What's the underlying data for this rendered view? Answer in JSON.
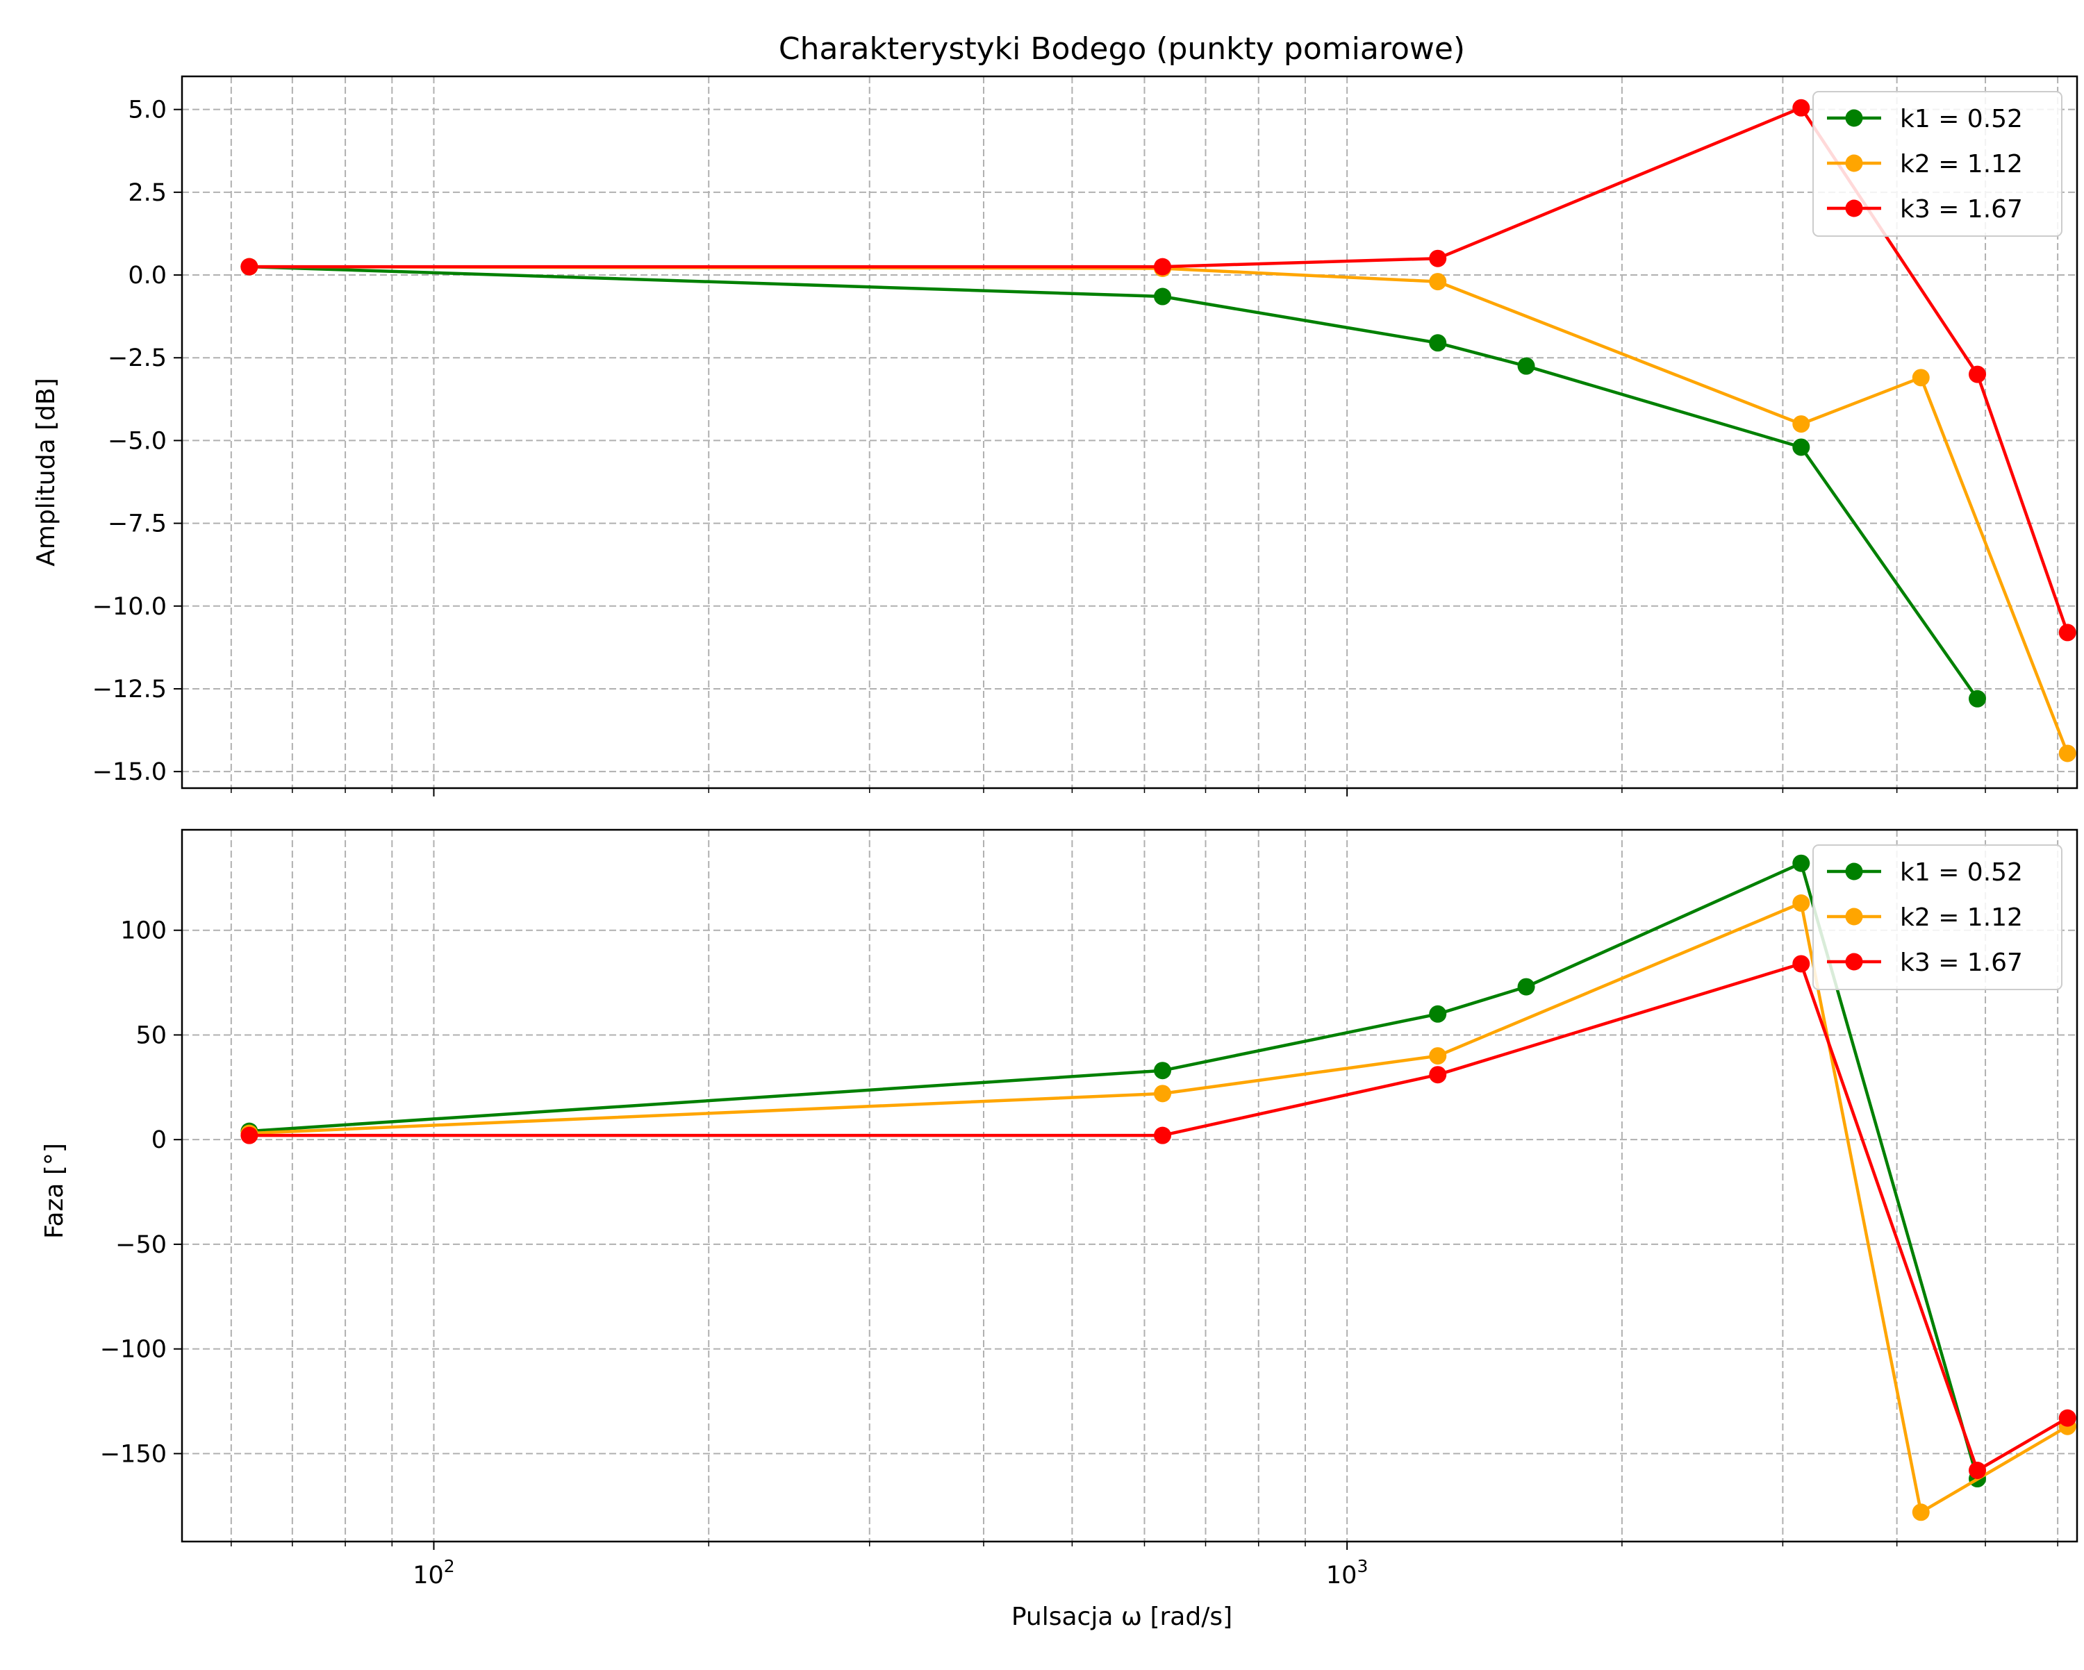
{
  "chart_data": [
    {
      "type": "line",
      "title": "Charakterystyki Bodego (punkty pomiarowe)",
      "xlabel": "",
      "ylabel": "Amplituda [dB]",
      "xscale": "log",
      "xlim": [
        53,
        6300
      ],
      "ylim": [
        -15.5,
        6.0
      ],
      "yticks": [
        "5.0",
        "2.5",
        "0.0",
        "−2.5",
        "−5.0",
        "−7.5",
        "−10.0",
        "−12.5",
        "−15.0"
      ],
      "ytick_values": [
        5.0,
        2.5,
        0.0,
        -2.5,
        -5.0,
        -7.5,
        -10.0,
        -12.5,
        -15.0
      ],
      "grid": true,
      "legend_position": "top-right",
      "series": [
        {
          "name": "k1 = 0.52",
          "color": "#008000",
          "x": [
            62.8,
            628,
            1257,
            1571,
            3142,
            4900
          ],
          "y": [
            0.25,
            -0.65,
            -2.05,
            -2.75,
            -5.2,
            -12.8
          ]
        },
        {
          "name": "k2 = 1.12",
          "color": "#ffa500",
          "x": [
            62.8,
            628,
            1257,
            3142,
            4250,
            6150
          ],
          "y": [
            0.25,
            0.2,
            -0.2,
            -4.5,
            -3.1,
            -14.45
          ]
        },
        {
          "name": "k3 = 1.67",
          "color": "#ff0000",
          "x": [
            62.8,
            628,
            1257,
            3142,
            4900,
            6150
          ],
          "y": [
            0.25,
            0.25,
            0.5,
            5.05,
            -3.0,
            -10.8
          ]
        }
      ]
    },
    {
      "type": "line",
      "title": "",
      "xlabel": "Pulsacja ω [rad/s]",
      "ylabel": "Faza [°]",
      "xscale": "log",
      "xlim": [
        53,
        6300
      ],
      "ylim": [
        -192,
        148
      ],
      "xticks": [
        {
          "base": "10",
          "exp": "2",
          "value": 100
        },
        {
          "base": "10",
          "exp": "3",
          "value": 1000
        }
      ],
      "yticks": [
        "100",
        "50",
        "0",
        "−50",
        "−100",
        "−150"
      ],
      "ytick_values": [
        100,
        50,
        0,
        -50,
        -100,
        -150
      ],
      "grid": true,
      "legend_position": "top-right",
      "series": [
        {
          "name": "k1 = 0.52",
          "color": "#008000",
          "x": [
            62.8,
            628,
            1257,
            1571,
            3142,
            4900
          ],
          "y": [
            4,
            33,
            60,
            73,
            132,
            -162
          ]
        },
        {
          "name": "k2 = 1.12",
          "color": "#ffa500",
          "x": [
            62.8,
            628,
            1257,
            3142,
            4250,
            6150
          ],
          "y": [
            3,
            22,
            40,
            113,
            -178,
            -137
          ]
        },
        {
          "name": "k3 = 1.67",
          "color": "#ff0000",
          "x": [
            62.8,
            628,
            1257,
            3142,
            4900,
            6150
          ],
          "y": [
            2,
            2,
            31,
            84,
            -158,
            -133
          ]
        }
      ]
    }
  ]
}
